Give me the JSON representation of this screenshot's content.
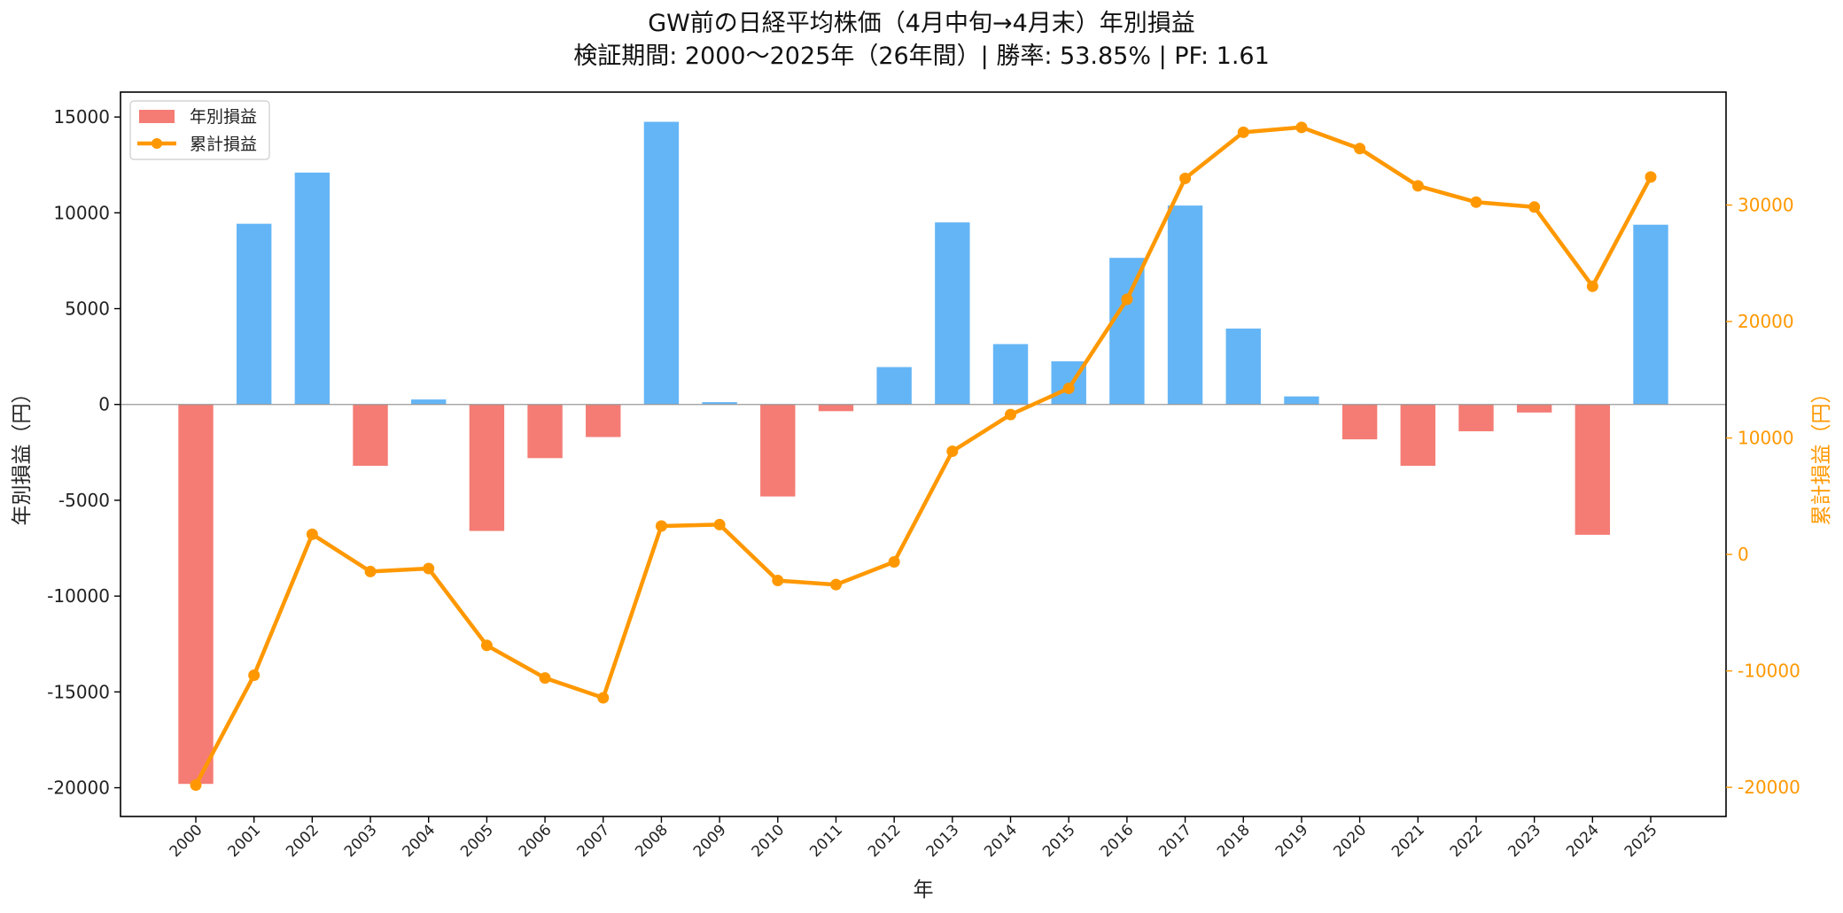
{
  "chart_data": {
    "type": "bar",
    "title": "GW前の日経平均株価（4月中旬→4月末）年別損益",
    "subtitle": "検証期間: 2000〜2025年（26年間）| 勝率: 53.85% | PF: 1.61",
    "xlabel": "年",
    "ylabel_left": "年別損益（円）",
    "ylabel_right": "累計損益（円）",
    "categories": [
      "2000",
      "2001",
      "2002",
      "2003",
      "2004",
      "2005",
      "2006",
      "2007",
      "2008",
      "2009",
      "2010",
      "2011",
      "2012",
      "2013",
      "2014",
      "2015",
      "2016",
      "2017",
      "2018",
      "2019",
      "2020",
      "2021",
      "2022",
      "2023",
      "2024",
      "2025"
    ],
    "series": [
      {
        "name": "年別損益",
        "type": "bar",
        "axis": "left",
        "values": [
          -19800,
          9430,
          12100,
          -3200,
          260,
          -6600,
          -2800,
          -1700,
          14750,
          120,
          -4800,
          -350,
          1950,
          9500,
          3150,
          2250,
          7650,
          10380,
          3960,
          420,
          -1820,
          -3200,
          -1400,
          -420,
          -6800,
          9380
        ]
      },
      {
        "name": "累計損益",
        "type": "line",
        "axis": "right",
        "values": [
          -19800,
          -10370,
          1730,
          -1470,
          -1210,
          -7810,
          -10610,
          -12310,
          2440,
          2560,
          -2240,
          -2590,
          -640,
          8860,
          12010,
          14260,
          21910,
          32290,
          36250,
          36670,
          34850,
          31650,
          30250,
          29830,
          23030,
          32410
        ]
      }
    ],
    "ylim_left": [
      -21500,
      16300
    ],
    "ylim_right": [
      -22500,
      39700
    ],
    "yticks_left": [
      -20000,
      -15000,
      -10000,
      -5000,
      0,
      5000,
      10000,
      15000
    ],
    "yticks_right": [
      -20000,
      -10000,
      0,
      10000,
      20000,
      30000
    ],
    "legend_position": "top-left",
    "grid": false,
    "colors": {
      "positive_bar": "#64b5f6",
      "negative_bar": "#f47c74",
      "line": "#ff9800",
      "right_axis": "#ff9800",
      "zero_line": "#999999"
    }
  }
}
